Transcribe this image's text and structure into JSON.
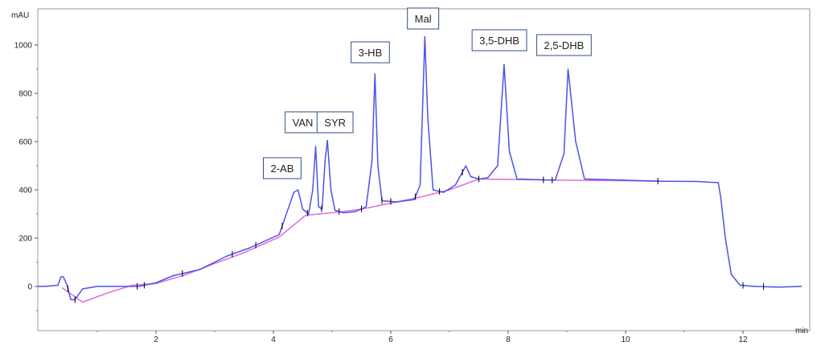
{
  "chart_data": {
    "type": "line",
    "y_unit_label": "mAU",
    "x_unit_label": "min",
    "xlim": [
      0,
      11.8
    ],
    "ylim": [
      -120,
      1090
    ],
    "x_ticks": [
      2,
      4,
      6,
      8,
      10,
      12
    ],
    "y_ticks": [
      0,
      200,
      400,
      600,
      800,
      1000
    ],
    "grid": false,
    "colors": {
      "signal": "#4d52ea",
      "baseline": "#e070e0",
      "marks": "#000000"
    },
    "series": [
      {
        "points": [
          [
            -0.4,
            0
          ],
          [
            0.1,
            0
          ],
          [
            0.33,
            5
          ],
          [
            0.38,
            40
          ],
          [
            0.42,
            40
          ],
          [
            0.48,
            8
          ],
          [
            0.55,
            -55
          ],
          [
            0.62,
            -55
          ],
          [
            0.75,
            -10
          ],
          [
            1.0,
            0
          ],
          [
            1.7,
            0
          ],
          [
            2.0,
            15
          ],
          [
            2.3,
            45
          ],
          [
            2.75,
            70
          ],
          [
            3.2,
            125
          ],
          [
            3.6,
            160
          ],
          [
            4.1,
            215
          ],
          [
            4.22,
            300
          ],
          [
            4.35,
            390
          ],
          [
            4.42,
            400
          ],
          [
            4.5,
            320
          ],
          [
            4.6,
            300
          ],
          [
            4.67,
            400
          ],
          [
            4.72,
            580
          ],
          [
            4.77,
            330
          ],
          [
            4.83,
            320
          ],
          [
            4.88,
            520
          ],
          [
            4.92,
            605
          ],
          [
            4.98,
            400
          ],
          [
            5.05,
            315
          ],
          [
            5.2,
            305
          ],
          [
            5.4,
            310
          ],
          [
            5.58,
            330
          ],
          [
            5.68,
            520
          ],
          [
            5.73,
            880
          ],
          [
            5.78,
            500
          ],
          [
            5.85,
            355
          ],
          [
            6.1,
            350
          ],
          [
            6.4,
            360
          ],
          [
            6.5,
            420
          ],
          [
            6.58,
            1035
          ],
          [
            6.63,
            700
          ],
          [
            6.72,
            400
          ],
          [
            6.9,
            390
          ],
          [
            7.1,
            420
          ],
          [
            7.28,
            500
          ],
          [
            7.36,
            455
          ],
          [
            7.5,
            445
          ],
          [
            7.65,
            450
          ],
          [
            7.82,
            500
          ],
          [
            7.93,
            920
          ],
          [
            8.02,
            560
          ],
          [
            8.15,
            445
          ],
          [
            8.8,
            440
          ],
          [
            8.95,
            550
          ],
          [
            9.02,
            900
          ],
          [
            9.15,
            600
          ],
          [
            9.3,
            445
          ],
          [
            10.0,
            440
          ],
          [
            10.6,
            436
          ],
          [
            11.2,
            435
          ],
          [
            11.58,
            430
          ],
          [
            11.62,
            370
          ],
          [
            11.7,
            200
          ],
          [
            11.8,
            50
          ],
          [
            11.95,
            5
          ],
          [
            12.2,
            0
          ],
          [
            12.6,
            -3
          ],
          [
            13.0,
            0
          ]
        ]
      }
    ],
    "baseline": [
      [
        0.4,
        -5
      ],
      [
        0.75,
        -65
      ],
      [
        1.2,
        -25
      ],
      [
        1.6,
        5
      ],
      [
        2.0,
        12
      ],
      [
        2.5,
        48
      ],
      [
        3.0,
        95
      ],
      [
        3.5,
        140
      ],
      [
        4.1,
        205
      ],
      [
        4.55,
        295
      ],
      [
        5.0,
        305
      ],
      [
        5.5,
        320
      ],
      [
        6.0,
        345
      ],
      [
        6.5,
        370
      ],
      [
        7.0,
        400
      ],
      [
        7.5,
        445
      ],
      [
        8.0,
        443
      ],
      [
        9.0,
        440
      ],
      [
        10.0,
        438
      ],
      [
        10.55,
        436
      ]
    ],
    "integration_marks": [
      0.5,
      0.62,
      1.68,
      1.8,
      2.45,
      3.3,
      3.7,
      4.15,
      4.58,
      4.82,
      5.12,
      5.5,
      5.85,
      6.0,
      6.42,
      6.83,
      7.22,
      7.5,
      8.6,
      8.75,
      10.55,
      12.0,
      12.35
    ],
    "annotations": [
      {
        "label": "2-AB",
        "x": 4.15,
        "y": 490
      },
      {
        "label": "VAN",
        "x": 4.5,
        "y": 680
      },
      {
        "label": "SYR",
        "x": 5.05,
        "y": 680
      },
      {
        "label": "3-HB",
        "x": 5.65,
        "y": 970
      },
      {
        "label": "Mal",
        "x": 6.55,
        "y": 1110
      },
      {
        "label": "3,5-DHB",
        "x": 7.85,
        "y": 1020
      },
      {
        "label": "2,5-DHB",
        "x": 8.95,
        "y": 1000
      }
    ]
  }
}
